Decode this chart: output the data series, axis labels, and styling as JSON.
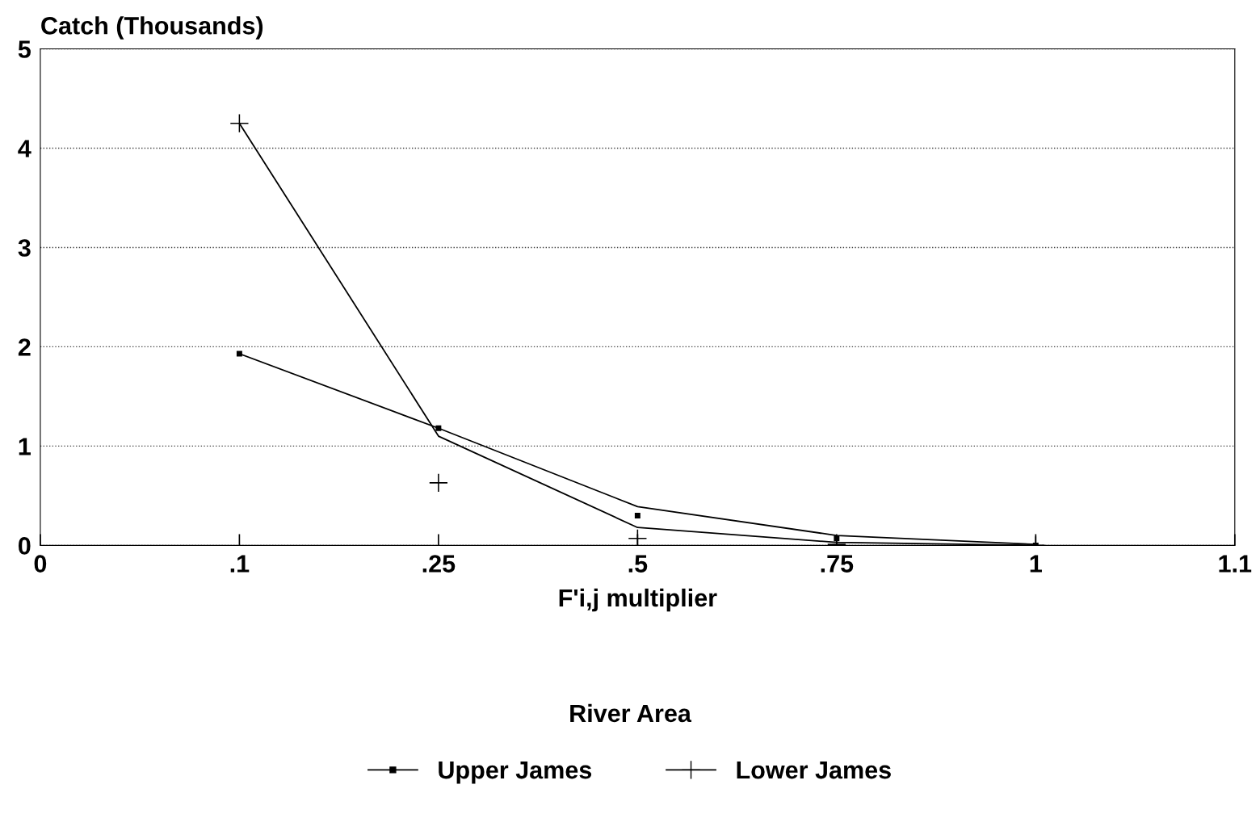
{
  "chart_data": {
    "type": "line",
    "xlabel": "F'i,j multiplier",
    "ylabel": "Catch (Thousands)",
    "legend_title": "River Area",
    "legend": "bottom",
    "grid": "y",
    "categories": [
      "0",
      ".1",
      ".25",
      ".5",
      ".75",
      "1",
      "1.1"
    ],
    "ylim": [
      0,
      5
    ],
    "yticks": [
      0,
      1,
      2,
      3,
      4,
      5
    ],
    "series": [
      {
        "name": "Upper James",
        "type": "scatter",
        "marker": "square",
        "color": "#000000",
        "values": [
          null,
          1.93,
          1.18,
          0.3,
          0.07,
          0.0,
          null
        ]
      },
      {
        "name": "Lower James",
        "type": "scatter",
        "marker": "cross",
        "color": "#000000",
        "values": [
          null,
          4.25,
          0.63,
          0.07,
          0.01,
          0.0,
          null
        ]
      },
      {
        "color": "#000000",
        "values": [
          null,
          1.93,
          1.18,
          0.39,
          0.1,
          0.01,
          null
        ]
      },
      {
        "color": "#000000",
        "values": [
          null,
          4.25,
          1.1,
          0.18,
          0.03,
          0.0,
          null
        ]
      }
    ]
  }
}
